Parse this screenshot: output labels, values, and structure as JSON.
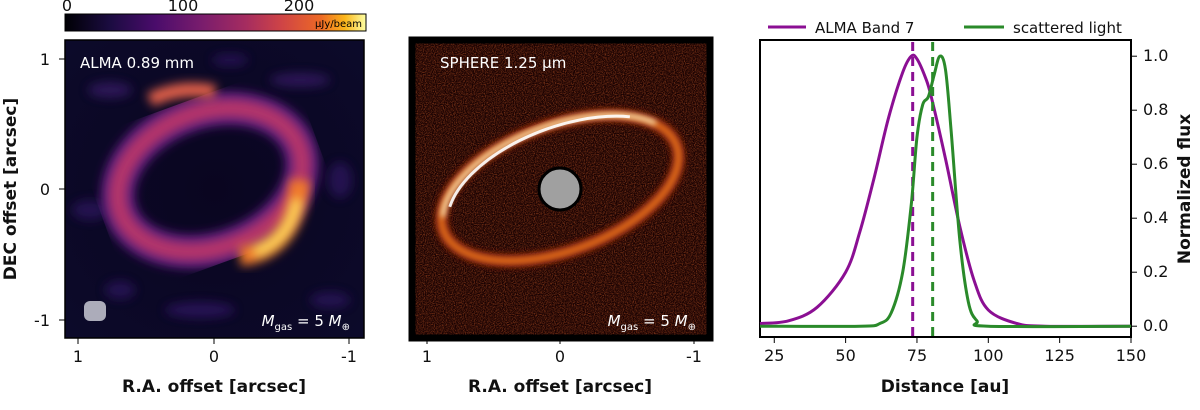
{
  "figure": {
    "panel_a": {
      "label": "ALMA 0.89 mm",
      "annotation": "M_gas = 5 M⊕",
      "annotation_parts": {
        "sym": "M",
        "sub": "gas",
        "mid": " = 5 ",
        "sym2": "M",
        "sub2": "⊕"
      },
      "xlabel": "R.A. offset [arcsec]",
      "ylabel": "DEC offset [arcsec]",
      "xticks": [
        "1",
        "0",
        "-1"
      ],
      "yticks": [
        "1",
        "0",
        "-1"
      ],
      "colorbar": {
        "label": "μJy/beam",
        "ticks": [
          "0",
          "100",
          "200"
        ],
        "range": [
          0,
          240
        ],
        "colormap": "inferno"
      }
    },
    "panel_b": {
      "label": "SPHERE 1.25 μm",
      "annotation_parts": {
        "sym": "M",
        "sub": "gas",
        "mid": " = 5 ",
        "sym2": "M",
        "sub2": "⊕"
      },
      "xlabel": "R.A. offset [arcsec]",
      "xticks": [
        "1",
        "0",
        "-1"
      ]
    }
  },
  "chart_data": {
    "type": "line",
    "xlabel": "Distance [au]",
    "ylabel": "Normalized flux",
    "xlim": [
      20,
      150
    ],
    "ylim": [
      -0.04,
      1.06
    ],
    "xticks": [
      25,
      50,
      75,
      100,
      125,
      150
    ],
    "yticks": [
      0.0,
      0.2,
      0.4,
      0.6,
      0.8,
      1.0
    ],
    "ytick_labels": [
      "0.0",
      "0.2",
      "0.4",
      "0.6",
      "0.8",
      "1.0"
    ],
    "legend_position": "top",
    "series": [
      {
        "name": "ALMA Band 7",
        "color": "#8b0f93",
        "peak_marker_x": 73.5,
        "x": [
          20,
          30,
          40,
          50,
          55,
          60,
          65,
          70,
          73,
          75,
          78,
          80,
          85,
          90,
          95,
          100,
          110,
          120,
          150
        ],
        "y": [
          0.01,
          0.02,
          0.07,
          0.2,
          0.35,
          0.55,
          0.77,
          0.94,
          1.0,
          0.99,
          0.92,
          0.85,
          0.62,
          0.37,
          0.17,
          0.06,
          0.01,
          0.0,
          0.0
        ]
      },
      {
        "name": "scattered light",
        "color": "#2a8a2a",
        "peak_marker_x": 80.5,
        "x": [
          20,
          55,
          62,
          66,
          70,
          73,
          75,
          77,
          79,
          81,
          83,
          85,
          87,
          90,
          93,
          96,
          100,
          150
        ],
        "y": [
          0.0,
          0.0,
          0.01,
          0.05,
          0.2,
          0.45,
          0.7,
          0.82,
          0.85,
          0.93,
          1.0,
          0.95,
          0.72,
          0.32,
          0.09,
          0.02,
          0.0,
          0.0
        ]
      }
    ]
  }
}
